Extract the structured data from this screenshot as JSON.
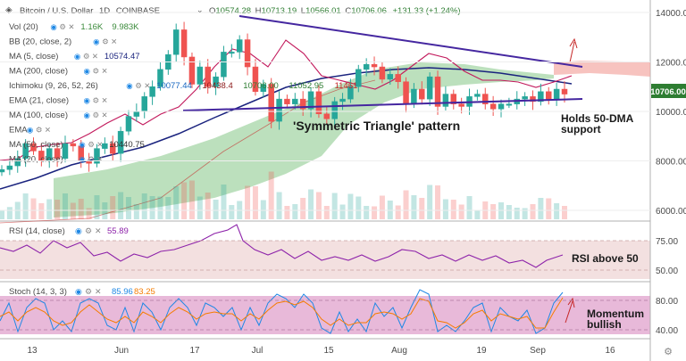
{
  "header": {
    "symbol_title": "Bitcoin / U.S. Dollar",
    "interval": "1D",
    "exchange": "COINBASE",
    "ohlc": {
      "o_label": "O",
      "o": "10574.28",
      "h_label": "H",
      "h": "10713.19",
      "l_label": "L",
      "l": "10566.01",
      "c_label": "C",
      "c": "10706.06",
      "change": "+131.33 (+1.24%)"
    }
  },
  "indicators": [
    {
      "id": "vol",
      "label": "Vol (20)",
      "values": [
        "1.16K",
        "9.983K"
      ],
      "colors": [
        "#3b8a3b",
        "#3b8a3b"
      ]
    },
    {
      "id": "bb",
      "label": "BB (20, close, 2)",
      "values": [],
      "colors": []
    },
    {
      "id": "ma5",
      "label": "MA (5, close)",
      "values": [
        "10574.47"
      ],
      "colors": [
        "#1a237e"
      ]
    },
    {
      "id": "ma200",
      "label": "MA (200, close)",
      "values": [],
      "colors": []
    },
    {
      "id": "ichimoku",
      "label": "Ichimoku (9, 26, 52, 26)",
      "values": [
        "10077.44",
        "10438.4",
        "10706.00",
        "11052.95",
        "11461"
      ],
      "colors": [
        "#1565c0",
        "#8b1a1a",
        "#2e7d32",
        "#2e7d32",
        "#c62828"
      ]
    },
    {
      "id": "ema21",
      "label": "EMA (21, close)",
      "values": [],
      "colors": []
    },
    {
      "id": "ma100",
      "label": "MA (100, close)",
      "values": [],
      "colors": []
    },
    {
      "id": "ema",
      "label": "EMA",
      "values": [],
      "colors": []
    },
    {
      "id": "ma50",
      "label": "MA (50, close)",
      "values": [
        "10440.75"
      ],
      "colors": [
        "#333333"
      ]
    },
    {
      "id": "ma20",
      "label": "MA (20, close)",
      "values": [],
      "colors": []
    }
  ],
  "rsi": {
    "label": "RSI (14, close)",
    "value": "55.89",
    "value_color": "#8e24aa"
  },
  "stoch": {
    "label": "Stoch (14, 3, 3)",
    "k": "85.96",
    "d": "83.25",
    "k_color": "#1e88e5",
    "d_color": "#f57c00"
  },
  "annotations": {
    "pattern": "'Symmetric Triangle' pattern",
    "support_line1": "Holds 50-DMA",
    "support_line2": "support",
    "rsi": "RSI above 50",
    "stoch_line1": "Momentum",
    "stoch_line2": "bullish"
  },
  "price_axis": {
    "ticks": [
      "14000.00",
      "12000.00",
      "10000.00",
      "8000.00",
      "6000.00"
    ],
    "current": "10706.00",
    "current_color": "#2e7d32"
  },
  "rsi_axis": {
    "ticks": [
      "75.00",
      "50.00"
    ]
  },
  "stoch_axis": {
    "ticks": [
      "80.00",
      "40.00"
    ]
  },
  "time_axis": {
    "ticks": [
      "13",
      "Jun",
      "17",
      "Jul",
      "15",
      "Aug",
      "19",
      "Sep",
      "16"
    ]
  },
  "colors": {
    "up_candle": "#26a69a",
    "down_candle": "#ef5350",
    "triangle_line": "#4527a0",
    "cloud_bull": "#a5d6a7",
    "cloud_bear": "#f4a9a4",
    "rsi_band": "#f3e0e0",
    "stoch_band": "#e8b9d9"
  },
  "chart_data": {
    "type": "candlestick",
    "x_ticks": [
      "13",
      "Jun",
      "17",
      "Jul",
      "15",
      "Aug",
      "19",
      "Sep",
      "16"
    ],
    "y_ticks": [
      14000,
      12000,
      10000,
      8000,
      6000
    ],
    "close_path": [
      [
        7650,
        0
      ],
      [
        7800,
        4
      ],
      [
        8100,
        8
      ],
      [
        8700,
        12
      ],
      [
        8400,
        16
      ],
      [
        8000,
        20
      ],
      [
        8500,
        24
      ],
      [
        8100,
        28
      ],
      [
        8700,
        32
      ],
      [
        8600,
        36
      ],
      [
        8000,
        40
      ],
      [
        7900,
        44
      ],
      [
        8500,
        48
      ],
      [
        8700,
        52
      ],
      [
        8300,
        56
      ],
      [
        9200,
        60
      ],
      [
        9800,
        64
      ],
      [
        10000,
        68
      ],
      [
        10600,
        72
      ],
      [
        11000,
        76
      ],
      [
        11700,
        80
      ],
      [
        12300,
        84
      ],
      [
        13300,
        88
      ],
      [
        12200,
        92
      ],
      [
        11100,
        96
      ],
      [
        11800,
        100
      ],
      [
        11000,
        104
      ],
      [
        11400,
        108
      ],
      [
        12400,
        112
      ],
      [
        12400,
        116
      ],
      [
        12900,
        120
      ],
      [
        11800,
        124
      ],
      [
        10800,
        128
      ],
      [
        11100,
        132
      ],
      [
        9600,
        136
      ],
      [
        10500,
        140
      ],
      [
        10300,
        144
      ],
      [
        10500,
        148
      ],
      [
        10100,
        152
      ],
      [
        10800,
        156
      ],
      [
        9900,
        160
      ],
      [
        9700,
        164
      ],
      [
        10400,
        168
      ],
      [
        10500,
        172
      ],
      [
        11000,
        176
      ],
      [
        11700,
        180
      ],
      [
        11900,
        184
      ],
      [
        11800,
        188
      ],
      [
        11300,
        192
      ],
      [
        11500,
        196
      ],
      [
        11200,
        200
      ],
      [
        10300,
        204
      ],
      [
        10900,
        208
      ],
      [
        10500,
        212
      ],
      [
        11400,
        216
      ],
      [
        10200,
        220
      ],
      [
        10700,
        224
      ],
      [
        10300,
        228
      ],
      [
        10200,
        232
      ],
      [
        10600,
        236
      ],
      [
        10700,
        240
      ],
      [
        10300,
        244
      ],
      [
        10100,
        248
      ],
      [
        10300,
        252
      ],
      [
        10300,
        256
      ],
      [
        10500,
        260
      ],
      [
        10600,
        264
      ],
      [
        10400,
        268
      ],
      [
        10800,
        272
      ],
      [
        10500,
        276
      ],
      [
        10900,
        280
      ],
      [
        10700,
        284
      ]
    ],
    "rsi_current": 55.89,
    "stoch": {
      "k": 85.96,
      "d": 83.25
    }
  }
}
